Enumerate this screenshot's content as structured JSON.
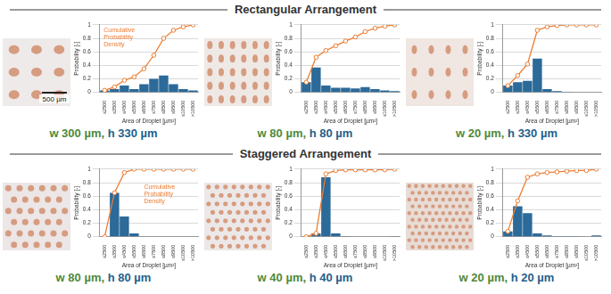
{
  "headings": [
    "Rectangular Arrangement",
    "Staggered Arrangement"
  ],
  "scale_bar": "500 µm",
  "chart_data": [
    {
      "type": "bar",
      "title": "w 300 µm, h 330 µm",
      "x_label": "Area of Droplet [µm²]",
      "y_label": "Probability [-]",
      "annotations": [
        "Cumulative Probability Density"
      ],
      "categories": [
        "≤2500",
        "≤3500",
        "≤4500",
        "≤5500",
        "≤6500",
        "≤7500",
        "≤8500",
        "≤9500",
        "≤10500",
        ">10500"
      ],
      "series": [
        {
          "type": "bar",
          "color": "#2b6a99",
          "values": [
            0.03,
            0.05,
            0.1,
            0.05,
            0.12,
            0.2,
            0.25,
            0.12,
            0.05,
            0.03
          ]
        },
        {
          "type": "line",
          "color": "#ed7d31",
          "marker": "circle",
          "values": [
            0.03,
            0.08,
            0.18,
            0.23,
            0.35,
            0.55,
            0.8,
            0.92,
            0.97,
            1.0
          ]
        }
      ],
      "ylim": [
        0,
        1
      ],
      "yticks": [
        0,
        0.2,
        0.4,
        0.6,
        0.8,
        1
      ],
      "grid": true
    },
    {
      "type": "bar",
      "title": "w 80 µm, h 80 µm",
      "x_label": "Area of Droplet [µm²]",
      "y_label": "Probability [-]",
      "categories": [
        "≤2500",
        "≤3500",
        "≤4500",
        "≤5500",
        "≤6500",
        "≤7500",
        "≤8500",
        "≤9500",
        "≤10500",
        ">10500"
      ],
      "series": [
        {
          "type": "bar",
          "color": "#2b6a99",
          "values": [
            0.15,
            0.37,
            0.1,
            0.07,
            0.07,
            0.06,
            0.08,
            0.05,
            0.03,
            0.02
          ]
        },
        {
          "type": "line",
          "color": "#ed7d31",
          "marker": "circle",
          "values": [
            0.15,
            0.52,
            0.62,
            0.69,
            0.76,
            0.82,
            0.9,
            0.95,
            0.98,
            1.0
          ]
        }
      ],
      "ylim": [
        0,
        1
      ],
      "yticks": [
        0,
        0.2,
        0.4,
        0.6,
        0.8,
        1
      ],
      "grid": true
    },
    {
      "type": "bar",
      "title": "w 20 µm, h 330 µm",
      "x_label": "Area of Droplet [µm²]",
      "y_label": "Probability [-]",
      "categories": [
        "≤2500",
        "≤3500",
        "≤4500",
        "≤5500",
        "≤6500",
        "≤7500",
        "≤8500",
        "≤9500",
        "≤10500",
        ">10500"
      ],
      "series": [
        {
          "type": "bar",
          "color": "#2b6a99",
          "values": [
            0.1,
            0.15,
            0.17,
            0.5,
            0.05,
            0.02,
            0.01,
            0,
            0,
            0
          ]
        },
        {
          "type": "line",
          "color": "#ed7d31",
          "marker": "circle",
          "values": [
            0.1,
            0.25,
            0.42,
            0.92,
            0.97,
            0.99,
            1.0,
            1.0,
            1.0,
            1.0
          ]
        }
      ],
      "ylim": [
        0,
        1
      ],
      "yticks": [
        0,
        0.2,
        0.4,
        0.6,
        0.8,
        1
      ],
      "grid": true
    },
    {
      "type": "bar",
      "title": "w 80 µm, h 80 µm",
      "x_label": "Area of Droplet [µm²]",
      "y_label": "Probability [-]",
      "annotations": [
        "Cumulative Probability Density"
      ],
      "categories": [
        "≤2500",
        "≤3500",
        "≤4500",
        "≤5500",
        "≤6500",
        "≤7500",
        "≤8500",
        "≤9500",
        "≤10500",
        ">10500"
      ],
      "series": [
        {
          "type": "bar",
          "color": "#2b6a99",
          "values": [
            0,
            0.65,
            0.3,
            0.05,
            0,
            0,
            0,
            0,
            0,
            0
          ]
        },
        {
          "type": "line",
          "color": "#ed7d31",
          "marker": "circle",
          "values": [
            0,
            0.65,
            0.95,
            1.0,
            1.0,
            1.0,
            1.0,
            1.0,
            1.0,
            1.0
          ]
        }
      ],
      "ylim": [
        0,
        1
      ],
      "yticks": [
        0,
        0.2,
        0.4,
        0.6,
        0.8,
        1
      ],
      "grid": true
    },
    {
      "type": "bar",
      "title": "w 40 µm, h 40 µm",
      "x_label": "Area of Droplet [µm²]",
      "y_label": "Probability [-]",
      "categories": [
        "≤2500",
        "≤3500",
        "≤4500",
        "≤5500",
        "≤6500",
        "≤7500",
        "≤8500",
        "≤9500",
        "≤10500",
        ">10500"
      ],
      "series": [
        {
          "type": "bar",
          "color": "#2b6a99",
          "values": [
            0,
            0.05,
            0.88,
            0.05,
            0.01,
            0,
            0,
            0,
            0,
            0.01
          ]
        },
        {
          "type": "line",
          "color": "#ed7d31",
          "marker": "circle",
          "values": [
            0,
            0.05,
            0.93,
            0.98,
            0.99,
            0.99,
            0.99,
            0.99,
            0.99,
            1.0
          ]
        }
      ],
      "ylim": [
        0,
        1
      ],
      "yticks": [
        0,
        0.2,
        0.4,
        0.6,
        0.8,
        1
      ],
      "grid": true
    },
    {
      "type": "bar",
      "title": "w 20 µm, h 20 µm",
      "x_label": "Area of Droplet [µm²]",
      "y_label": "Probability [-]",
      "categories": [
        "≤2500",
        "≤3500",
        "≤4500",
        "≤5500",
        "≤6500",
        "≤7500",
        "≤8500",
        "≤9500",
        "≤10500",
        ">10500"
      ],
      "series": [
        {
          "type": "bar",
          "color": "#2b6a99",
          "values": [
            0.08,
            0.45,
            0.35,
            0.05,
            0.02,
            0.01,
            0.01,
            0.01,
            0,
            0.02
          ]
        },
        {
          "type": "line",
          "color": "#ed7d31",
          "marker": "circle",
          "values": [
            0.08,
            0.53,
            0.88,
            0.93,
            0.95,
            0.96,
            0.97,
            0.98,
            0.98,
            1.0
          ]
        }
      ],
      "ylim": [
        0,
        1
      ],
      "yticks": [
        0,
        0.2,
        0.4,
        0.6,
        0.8,
        1
      ],
      "grid": true
    }
  ]
}
